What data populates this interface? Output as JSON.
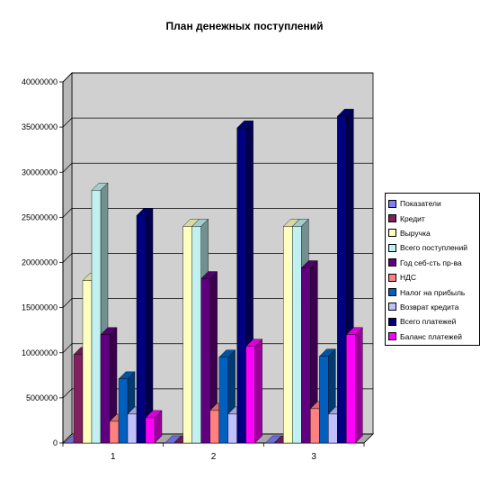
{
  "chart_data": {
    "type": "bar",
    "title": "План денежных поступлений",
    "categories": [
      "1",
      "2",
      "3"
    ],
    "ylim": [
      0,
      40000000
    ],
    "yticks": [
      "0",
      "5000000",
      "10000000",
      "15000000",
      "20000000",
      "25000000",
      "30000000",
      "35000000",
      "40000000"
    ],
    "grid": true,
    "legend_position": "right",
    "series": [
      {
        "name": "Показатели",
        "color": "#8080ff",
        "values": [
          0,
          0,
          0
        ]
      },
      {
        "name": "Кредит",
        "color": "#802060",
        "values": [
          9800000,
          0,
          0
        ]
      },
      {
        "name": "Выручка",
        "color": "#ffffc0",
        "values": [
          18000000,
          24000000,
          24000000
        ]
      },
      {
        "name": "Всего поступлений",
        "color": "#c0f0f0",
        "values": [
          28000000,
          24000000,
          24000000
        ]
      },
      {
        "name": "Год себ-сть пр-ва",
        "color": "#600080",
        "values": [
          12000000,
          18200000,
          19400000
        ]
      },
      {
        "name": "НДС",
        "color": "#ff8080",
        "values": [
          2400000,
          3600000,
          3800000
        ]
      },
      {
        "name": "Налог на прибыль",
        "color": "#0060c0",
        "values": [
          7100000,
          9500000,
          9600000
        ]
      },
      {
        "name": "Возврат кредита",
        "color": "#c0c0ff",
        "values": [
          3200000,
          3200000,
          3200000
        ]
      },
      {
        "name": "Всего платежей",
        "color": "#000080",
        "values": [
          25200000,
          34900000,
          36200000
        ]
      },
      {
        "name": "Баланс платежей",
        "color": "#ff00ff",
        "values": [
          2800000,
          10700000,
          12000000
        ]
      }
    ]
  }
}
